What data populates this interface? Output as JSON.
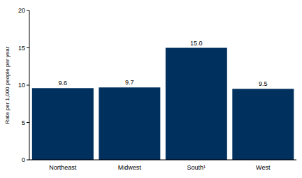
{
  "chart_data": {
    "type": "bar",
    "categories": [
      "Northeast",
      "Midwest",
      "South¹",
      "West"
    ],
    "values": [
      9.6,
      9.7,
      15.0,
      9.5
    ],
    "value_labels": [
      "9.6",
      "9.7",
      "15.0",
      "9.5"
    ],
    "color": "#00305e",
    "ylabel": "Rate per 1,000 people per year",
    "ylim": [
      0,
      20
    ],
    "yticks": [
      0,
      5,
      10,
      15,
      20
    ],
    "grid": false,
    "data_labels": true
  }
}
